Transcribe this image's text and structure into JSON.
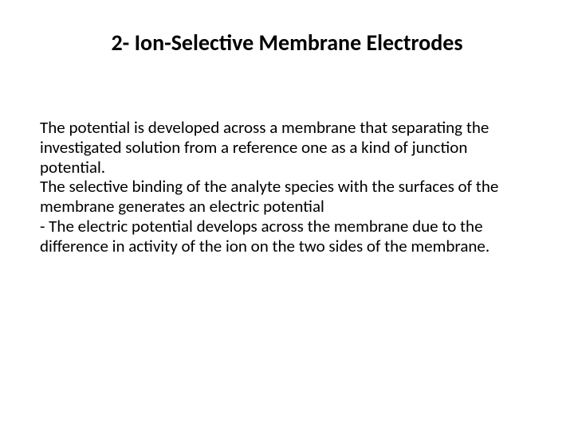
{
  "title": "2- Ion-Selective Membrane Electrodes",
  "paragraphs": {
    "p1": "The potential is developed across a membrane that separating the investigated solution from a reference one as a kind of junction potential.",
    "p2": "The selective binding of the analyte species with the surfaces of the membrane generates an electric potential",
    "p3": "- The electric potential develops across the membrane due to the difference in activity of the ion on the two sides of the membrane."
  },
  "colors": {
    "text": "#000000",
    "background": "#ffffff"
  },
  "typography": {
    "title_fontsize": 28,
    "title_weight": 700,
    "body_fontsize": 21,
    "body_weight": 400,
    "line_height": 1.18,
    "font_family": "Calibri"
  }
}
